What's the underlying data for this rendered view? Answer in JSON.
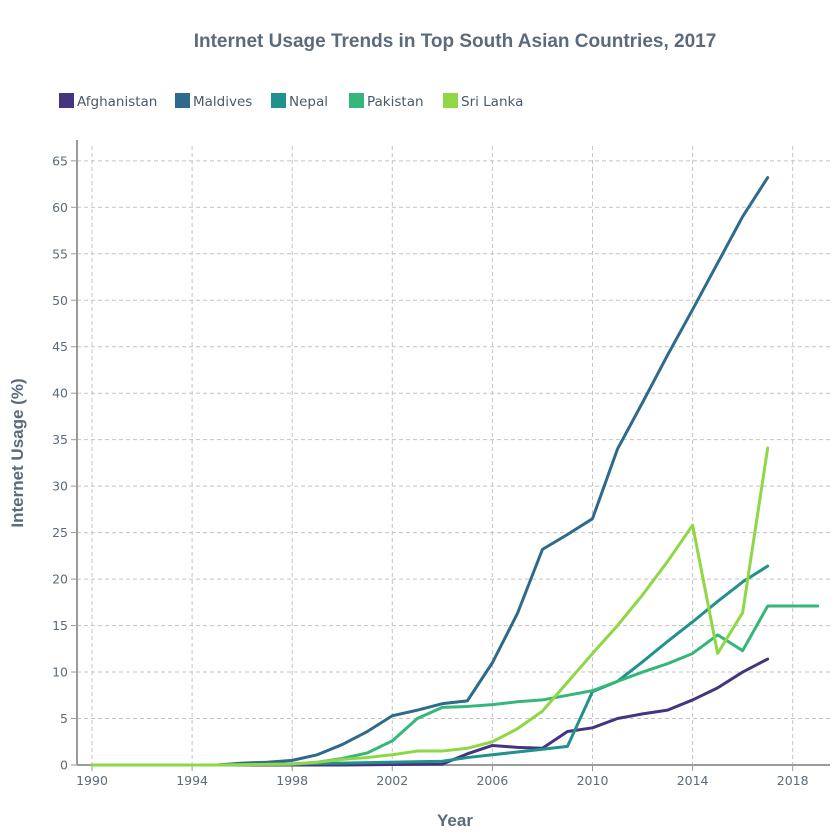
{
  "colors": {
    "afghanistan": "#463480",
    "maldives": "#2e6a8c",
    "nepal": "#21918c",
    "pakistan": "#35b779",
    "sri_lanka": "#8fd744"
  },
  "chart_data": {
    "type": "line",
    "title": "Internet Usage Trends in Top South Asian Countries, 2017",
    "xlabel": "Year",
    "ylabel": "Internet Usage (%)",
    "xlim": [
      1990,
      2019
    ],
    "ylim": [
      0,
      65
    ],
    "x_ticks": [
      "1990",
      "1994",
      "1998",
      "2002",
      "2006",
      "2010",
      "2014",
      "2018"
    ],
    "y_ticks": [
      "0",
      "5",
      "10",
      "15",
      "20",
      "25",
      "30",
      "35",
      "40",
      "45",
      "50",
      "55",
      "60",
      "65"
    ],
    "grid": true,
    "legend_position": "top-left",
    "series": [
      {
        "name": "Afghanistan",
        "color": "#463480",
        "x": [
          1990,
          1995,
          2000,
          2004,
          2005,
          2006,
          2007,
          2008,
          2009,
          2010,
          2011,
          2012,
          2013,
          2014,
          2015,
          2016,
          2017
        ],
        "y": [
          0,
          0,
          0,
          0.1,
          1.2,
          2.1,
          1.9,
          1.8,
          3.6,
          4.0,
          5.0,
          5.5,
          5.9,
          7.0,
          8.3,
          10.0,
          11.4
        ]
      },
      {
        "name": "Maldives",
        "color": "#2e6a8c",
        "x": [
          1990,
          1995,
          1996,
          1997,
          1998,
          1999,
          2000,
          2001,
          2002,
          2003,
          2004,
          2005,
          2006,
          2007,
          2008,
          2009,
          2010,
          2011,
          2012,
          2013,
          2014,
          2015,
          2016,
          2017
        ],
        "y": [
          0,
          0,
          0.2,
          0.3,
          0.5,
          1.1,
          2.2,
          3.6,
          5.3,
          5.9,
          6.6,
          6.9,
          11.0,
          16.3,
          23.2,
          24.8,
          26.5,
          34.0,
          39.0,
          44.1,
          49.0,
          54.0,
          59.0,
          63.2
        ]
      },
      {
        "name": "Nepal",
        "color": "#21918c",
        "x": [
          1990,
          1995,
          2000,
          2004,
          2005,
          2006,
          2007,
          2008,
          2009,
          2010,
          2011,
          2012,
          2013,
          2014,
          2015,
          2016,
          2017
        ],
        "y": [
          0,
          0,
          0.2,
          0.4,
          0.8,
          1.1,
          1.4,
          1.7,
          2.0,
          7.9,
          9.0,
          11.1,
          13.3,
          15.4,
          17.6,
          19.7,
          21.4
        ]
      },
      {
        "name": "Pakistan",
        "color": "#35b779",
        "x": [
          1990,
          1995,
          1998,
          1999,
          2000,
          2001,
          2002,
          2003,
          2004,
          2005,
          2006,
          2007,
          2008,
          2009,
          2010,
          2011,
          2012,
          2013,
          2014,
          2015,
          2016,
          2017,
          2018,
          2019
        ],
        "y": [
          0,
          0,
          0.1,
          0.3,
          0.7,
          1.3,
          2.6,
          5.0,
          6.2,
          6.3,
          6.5,
          6.8,
          7.0,
          7.5,
          8.0,
          9.0,
          10.0,
          10.9,
          12.0,
          14.0,
          12.3,
          17.1,
          17.1,
          17.1
        ]
      },
      {
        "name": "Sri Lanka",
        "color": "#8fd744",
        "x": [
          1990,
          1995,
          1998,
          1999,
          2000,
          2001,
          2002,
          2003,
          2004,
          2005,
          2006,
          2007,
          2008,
          2009,
          2010,
          2011,
          2012,
          2013,
          2014,
          2015,
          2016,
          2017
        ],
        "y": [
          0,
          0,
          0.1,
          0.3,
          0.6,
          0.8,
          1.1,
          1.5,
          1.5,
          1.8,
          2.5,
          3.9,
          5.8,
          8.9,
          12.0,
          15.0,
          18.3,
          21.9,
          25.8,
          12.0,
          16.4,
          34.1
        ]
      }
    ]
  }
}
